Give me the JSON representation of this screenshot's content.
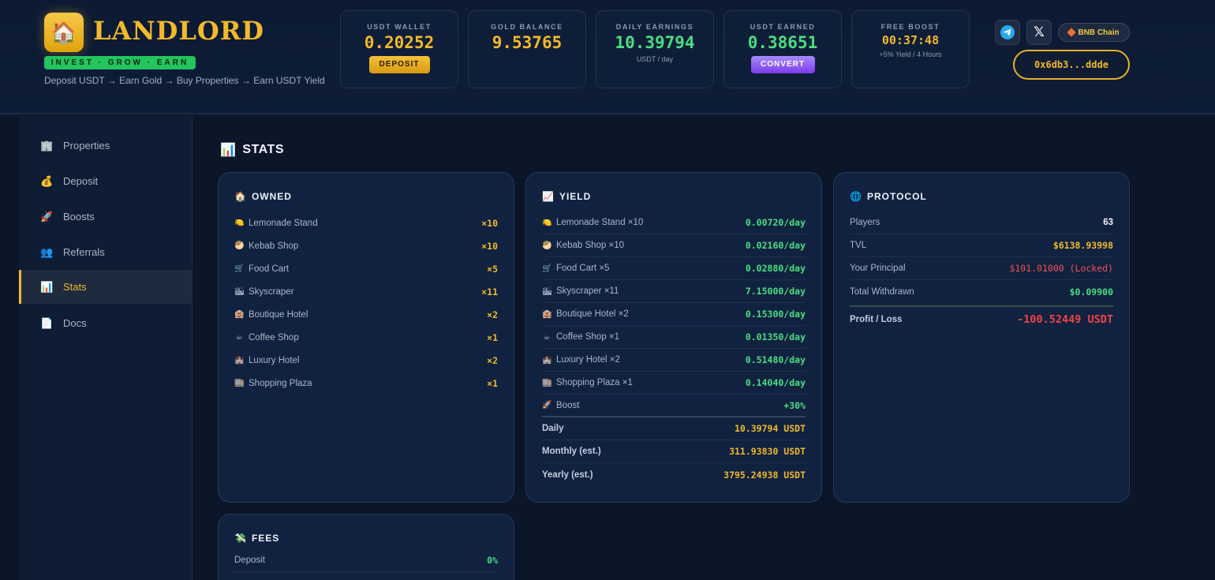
{
  "header": {
    "logo_icon": "house-icon",
    "logo_text": "LANDLORD",
    "tagline": "INVEST · GROW · EARN",
    "subtitle": "Deposit USDT → Earn Gold → Buy Properties → Earn USDT Yield",
    "cards": [
      {
        "label": "USDT WALLET",
        "value": "0.20252",
        "button": "DEPOSIT"
      },
      {
        "label": "GOLD BALANCE",
        "value": "9.53765"
      },
      {
        "label": "DAILY EARNINGS",
        "value": "10.39794",
        "sub": "USDT / day"
      },
      {
        "label": "USDT EARNED",
        "value": "0.38651",
        "button": "CONVERT"
      },
      {
        "label": "FREE BOOST",
        "value": "00:37:48",
        "sub": "+5% Yield / 4 Hours"
      }
    ],
    "social": [
      "telegram-icon",
      "x-icon"
    ],
    "chain_label": "BNB Chain",
    "wallet_address": "0x6db3...ddde"
  },
  "sidebar": {
    "items": [
      {
        "label": "Properties",
        "icon": "building-icon",
        "glyph": "🏢",
        "active": false
      },
      {
        "label": "Deposit",
        "icon": "money-bag-icon",
        "glyph": "💰",
        "active": false
      },
      {
        "label": "Boosts",
        "icon": "rocket-icon",
        "glyph": "🚀",
        "active": false
      },
      {
        "label": "Referrals",
        "icon": "people-icon",
        "glyph": "👥",
        "active": false
      },
      {
        "label": "Stats",
        "icon": "chart-icon",
        "glyph": "📊",
        "active": true
      },
      {
        "label": "Docs",
        "icon": "document-icon",
        "glyph": "📄",
        "active": false
      }
    ]
  },
  "main": {
    "title": "STATS",
    "title_icon": "chart-icon",
    "owned": {
      "title": "OWNED",
      "icon": "house-icon",
      "rows": [
        {
          "glyph": "🍋",
          "label": "Lemonade Stand",
          "value": "×10"
        },
        {
          "glyph": "🥙",
          "label": "Kebab Shop",
          "value": "×10"
        },
        {
          "glyph": "🛒",
          "label": "Food Cart",
          "value": "×5"
        },
        {
          "glyph": "🏙",
          "label": "Skyscraper",
          "value": "×11"
        },
        {
          "glyph": "🏨",
          "label": "Boutique Hotel",
          "value": "×2"
        },
        {
          "glyph": "☕",
          "label": "Coffee Shop",
          "value": "×1"
        },
        {
          "glyph": "🏰",
          "label": "Luxury Hotel",
          "value": "×2"
        },
        {
          "glyph": "🏬",
          "label": "Shopping Plaza",
          "value": "×1"
        }
      ]
    },
    "yield": {
      "title": "YIELD",
      "icon": "trend-up-icon",
      "rows": [
        {
          "glyph": "🍋",
          "label": "Lemonade Stand ×10",
          "value": "0.00720/day"
        },
        {
          "glyph": "🥙",
          "label": "Kebab Shop ×10",
          "value": "0.02160/day"
        },
        {
          "glyph": "🛒",
          "label": "Food Cart ×5",
          "value": "0.02880/day"
        },
        {
          "glyph": "🏙",
          "label": "Skyscraper ×11",
          "value": "7.15000/day"
        },
        {
          "glyph": "🏨",
          "label": "Boutique Hotel ×2",
          "value": "0.15300/day"
        },
        {
          "glyph": "☕",
          "label": "Coffee Shop ×1",
          "value": "0.01350/day"
        },
        {
          "glyph": "🏰",
          "label": "Luxury Hotel ×2",
          "value": "0.51480/day"
        },
        {
          "glyph": "🏬",
          "label": "Shopping Plaza ×1",
          "value": "0.14040/day"
        },
        {
          "glyph": "🚀",
          "label": "Boost",
          "value": "+30%"
        }
      ],
      "totals": [
        {
          "label": "Daily",
          "value": "10.39794 USDT"
        },
        {
          "label": "Monthly (est.)",
          "value": "311.93830 USDT"
        },
        {
          "label": "Yearly (est.)",
          "value": "3795.24938 USDT"
        }
      ]
    },
    "protocol": {
      "title": "PROTOCOL",
      "icon": "globe-icon",
      "rows": [
        {
          "label": "Players",
          "value": "63"
        },
        {
          "label": "TVL",
          "value": "$6138.93998"
        },
        {
          "label": "Your Principal",
          "value": "$101.01000 (Locked)"
        },
        {
          "label": "Total Withdrawn",
          "value": "$0.09900"
        }
      ],
      "profit_label": "Profit / Loss",
      "profit_value": "-100.52449 USDT"
    },
    "fees": {
      "title": "FEES",
      "icon": "money-wings-icon",
      "rows": [
        {
          "label": "Deposit",
          "value": "0%"
        }
      ]
    }
  }
}
